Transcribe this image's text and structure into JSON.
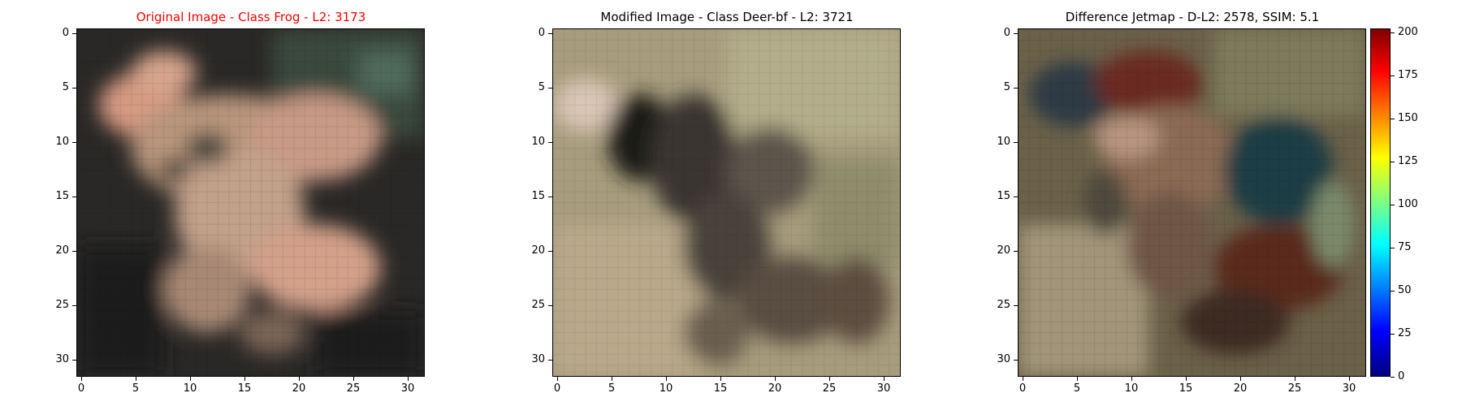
{
  "panels": [
    {
      "title": "Original Image - Class Frog - L2: 3173",
      "title_color": "#ff0000",
      "x_ticks": [
        "0",
        "5",
        "10",
        "15",
        "20",
        "25",
        "30"
      ],
      "y_ticks": [
        "0",
        "5",
        "10",
        "15",
        "20",
        "25",
        "30"
      ]
    },
    {
      "title": "Modified Image - Class Deer-bf - L2: 3721",
      "title_color": "#000000",
      "x_ticks": [
        "0",
        "5",
        "10",
        "15",
        "20",
        "25",
        "30"
      ],
      "y_ticks": [
        "0",
        "5",
        "10",
        "15",
        "20",
        "25",
        "30"
      ]
    },
    {
      "title": "Difference Jetmap - D-L2: 2578, SSIM: 5.1",
      "title_color": "#000000",
      "x_ticks": [
        "0",
        "5",
        "10",
        "15",
        "20",
        "25",
        "30"
      ],
      "y_ticks": [
        "0",
        "5",
        "10",
        "15",
        "20",
        "25",
        "30"
      ]
    }
  ],
  "colorbar": {
    "labels": [
      "0",
      "25",
      "50",
      "75",
      "100",
      "125",
      "150",
      "175",
      "200"
    ],
    "range": [
      0,
      202
    ],
    "colormap": "jet"
  }
}
